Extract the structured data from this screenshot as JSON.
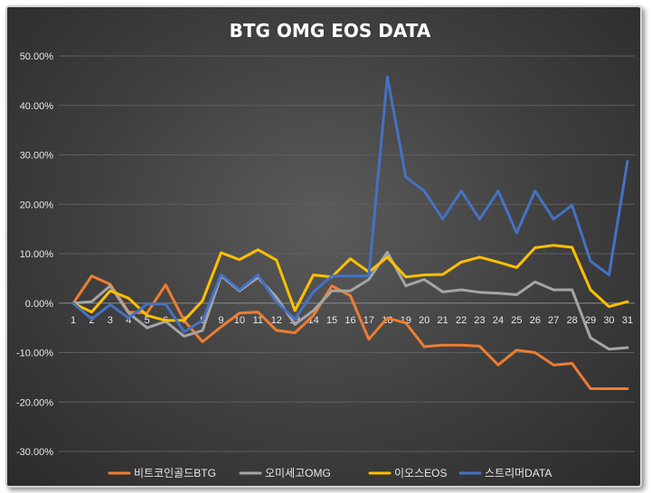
{
  "chart_data": {
    "type": "line",
    "title": "BTG OMG EOS DATA",
    "xlabel": "",
    "ylabel": "",
    "ylim": [
      -30,
      50
    ],
    "y_ticks": [
      "50.00%",
      "40.00%",
      "30.00%",
      "20.00%",
      "10.00%",
      "0.00%",
      "-10.00%",
      "-20.00%",
      "-30.00%"
    ],
    "y_tick_values": [
      50,
      40,
      30,
      20,
      10,
      0,
      -10,
      -20,
      -30
    ],
    "x": [
      "1",
      "2",
      "3",
      "4",
      "5",
      "6",
      "7",
      "8",
      "9",
      "10",
      "11",
      "12",
      "13",
      "14",
      "15",
      "16",
      "17",
      "18",
      "19",
      "20",
      "21",
      "22",
      "23",
      "24",
      "25",
      "26",
      "27",
      "28",
      "29",
      "30",
      "31"
    ],
    "grid": true,
    "legend_position": "bottom",
    "series": [
      {
        "name": "비트코인골드BTG",
        "color": "#ED7D31",
        "values": [
          0,
          5.5,
          3.8,
          -1.8,
          -2.0,
          3.7,
          -3.5,
          -7.8,
          -4.8,
          -2.0,
          -1.8,
          -5.5,
          -6.0,
          -2.5,
          3.5,
          1.5,
          -7.3,
          -3.0,
          -4.0,
          -8.8,
          -8.5,
          -8.5,
          -8.7,
          -12.5,
          -9.5,
          -10.0,
          -12.5,
          -12.2,
          -17.3,
          -17.3,
          -17.3
        ]
      },
      {
        "name": "오미세고OMG",
        "color": "#A5A5A5",
        "values": [
          0,
          0.3,
          3.5,
          -2.0,
          -5.0,
          -3.7,
          -6.7,
          -5.5,
          5.5,
          2.5,
          5.2,
          1.2,
          -4.3,
          -1.5,
          2.5,
          2.5,
          4.8,
          10.3,
          3.5,
          4.8,
          2.3,
          2.7,
          2.2,
          2.0,
          1.7,
          4.3,
          2.7,
          2.7,
          -7.0,
          -9.3,
          -9.0
        ]
      },
      {
        "name": "이오스EOS",
        "color": "#FFC000",
        "values": [
          0,
          -1.8,
          2.5,
          1.0,
          -2.5,
          -3.5,
          -3.5,
          0.5,
          10.2,
          8.8,
          10.8,
          8.7,
          -1.5,
          5.7,
          5.3,
          9.0,
          6.3,
          9.3,
          5.3,
          5.7,
          5.8,
          8.3,
          9.3,
          8.3,
          7.2,
          11.2,
          11.7,
          11.3,
          2.7,
          -0.7,
          0.3
        ]
      },
      {
        "name": "스트리머DATA",
        "color": "#4472C4",
        "values": [
          0,
          -3.2,
          -0.3,
          -3.0,
          -0.2,
          -0.2,
          -5.8,
          -3.5,
          5.8,
          2.7,
          5.7,
          0.2,
          -3.2,
          2.3,
          5.5,
          5.5,
          5.5,
          45.8,
          25.5,
          22.7,
          17.0,
          22.7,
          17.0,
          22.7,
          14.2,
          22.7,
          17.0,
          19.8,
          8.5,
          5.7,
          28.7
        ]
      }
    ]
  }
}
